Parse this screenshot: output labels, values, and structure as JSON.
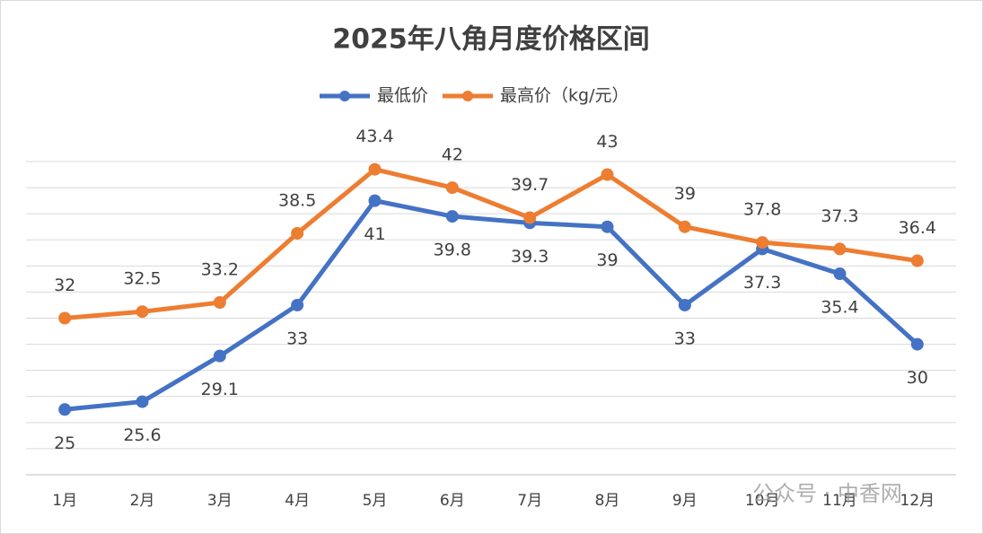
{
  "chart_data": {
    "type": "line",
    "title": "2025年八角月度价格区间",
    "categories": [
      "1月",
      "2月",
      "3月",
      "4月",
      "5月",
      "6月",
      "7月",
      "8月",
      "9月",
      "10月",
      "11月",
      "12月"
    ],
    "series": [
      {
        "name": "最低价",
        "color": "#4472c4",
        "values": [
          25,
          25.6,
          29.1,
          33,
          41,
          39.8,
          39.3,
          39,
          33,
          37.3,
          35.4,
          30
        ]
      },
      {
        "name": "最高价（kg/元）",
        "color": "#ed7d31",
        "values": [
          32,
          32.5,
          33.2,
          38.5,
          43.4,
          42,
          39.7,
          43,
          39,
          37.8,
          37.3,
          36.4
        ]
      }
    ],
    "ylim": [
      20,
      44
    ],
    "yticks": [
      20,
      22,
      24,
      26,
      28,
      30,
      32,
      34,
      36,
      38,
      40,
      42,
      44
    ],
    "grid": true,
    "legend": "top",
    "watermark": "公众号 · 中香网"
  }
}
